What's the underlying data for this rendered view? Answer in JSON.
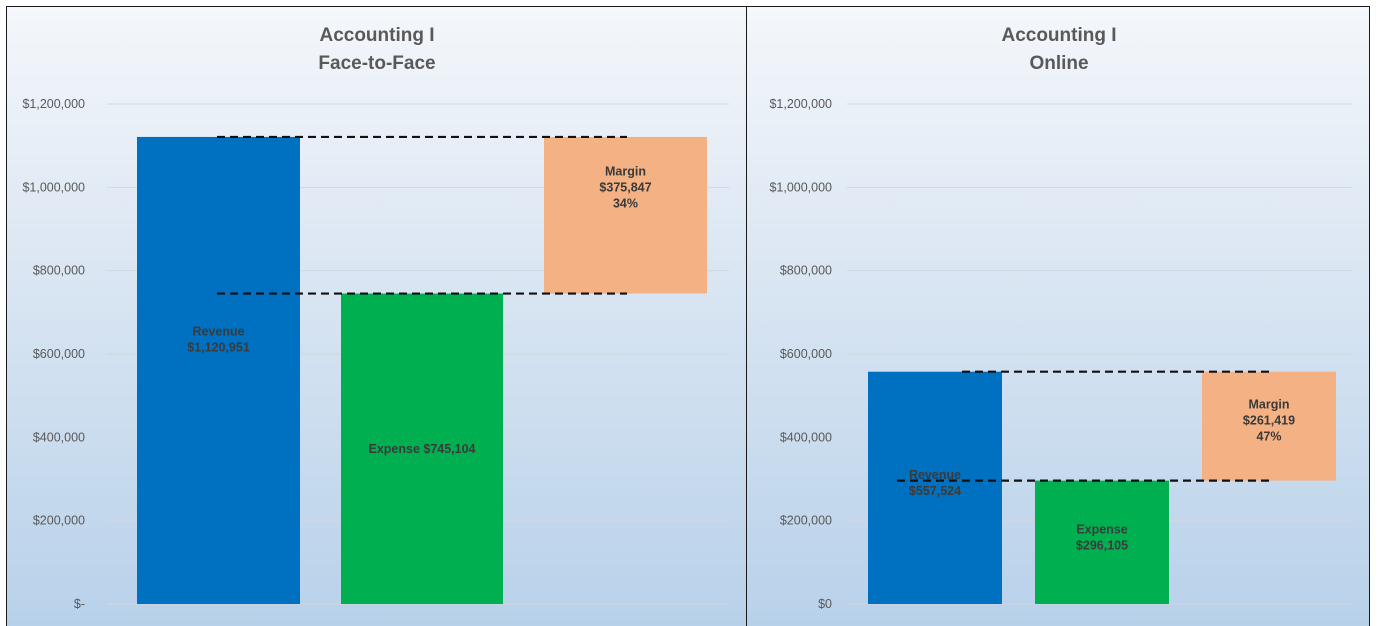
{
  "chart_data": [
    {
      "type": "bar",
      "title_lines": [
        "Accounting I",
        "Face-to-Face"
      ],
      "ylim": [
        0,
        1200000
      ],
      "yticks": [
        0,
        200000,
        400000,
        600000,
        800000,
        1000000,
        1200000
      ],
      "ytick_labels": [
        "$-",
        "$200,000",
        "$400,000",
        "$600,000",
        "$800,000",
        "$1,000,000",
        "$1,200,000"
      ],
      "grid": true,
      "legend": "none",
      "bars": [
        {
          "name": "Revenue",
          "bottom": 0,
          "top": 1120951,
          "color": "#0070c0",
          "label_lines": [
            "Revenue",
            "$1,120,951"
          ],
          "label_value": 635000
        },
        {
          "name": "Expense",
          "bottom": 0,
          "top": 745104,
          "color": "#00b050",
          "label_lines": [
            "Expense  $745,104"
          ],
          "label_value": 372000
        },
        {
          "name": "Margin",
          "bottom": 745104,
          "top": 1120951,
          "color": "#f4b183",
          "label_lines": [
            "Margin",
            "$375,847",
            "34%"
          ],
          "label_value": 1000000
        }
      ],
      "reference_lines": [
        1120951,
        745104
      ]
    },
    {
      "type": "bar",
      "title_lines": [
        "Accounting I",
        "Online"
      ],
      "ylim": [
        0,
        1200000
      ],
      "yticks": [
        0,
        200000,
        400000,
        600000,
        800000,
        1000000,
        1200000
      ],
      "ytick_labels": [
        "$0",
        "$200,000",
        "$400,000",
        "$600,000",
        "$800,000",
        "$1,000,000",
        "$1,200,000"
      ],
      "grid": true,
      "legend": "none",
      "bars": [
        {
          "name": "Revenue",
          "bottom": 0,
          "top": 557524,
          "color": "#0070c0",
          "label_lines": [
            "Revenue",
            "$557,524"
          ],
          "label_value": 290000
        },
        {
          "name": "Expense",
          "bottom": 0,
          "top": 296105,
          "color": "#00b050",
          "label_lines": [
            "Expense",
            "$296,105"
          ],
          "label_value": 160000
        },
        {
          "name": "Margin",
          "bottom": 296105,
          "top": 557524,
          "color": "#f4b183",
          "label_lines": [
            "Margin",
            "$261,419",
            "47%"
          ],
          "label_value": 440000
        }
      ],
      "reference_lines": [
        557524,
        296105
      ]
    }
  ]
}
